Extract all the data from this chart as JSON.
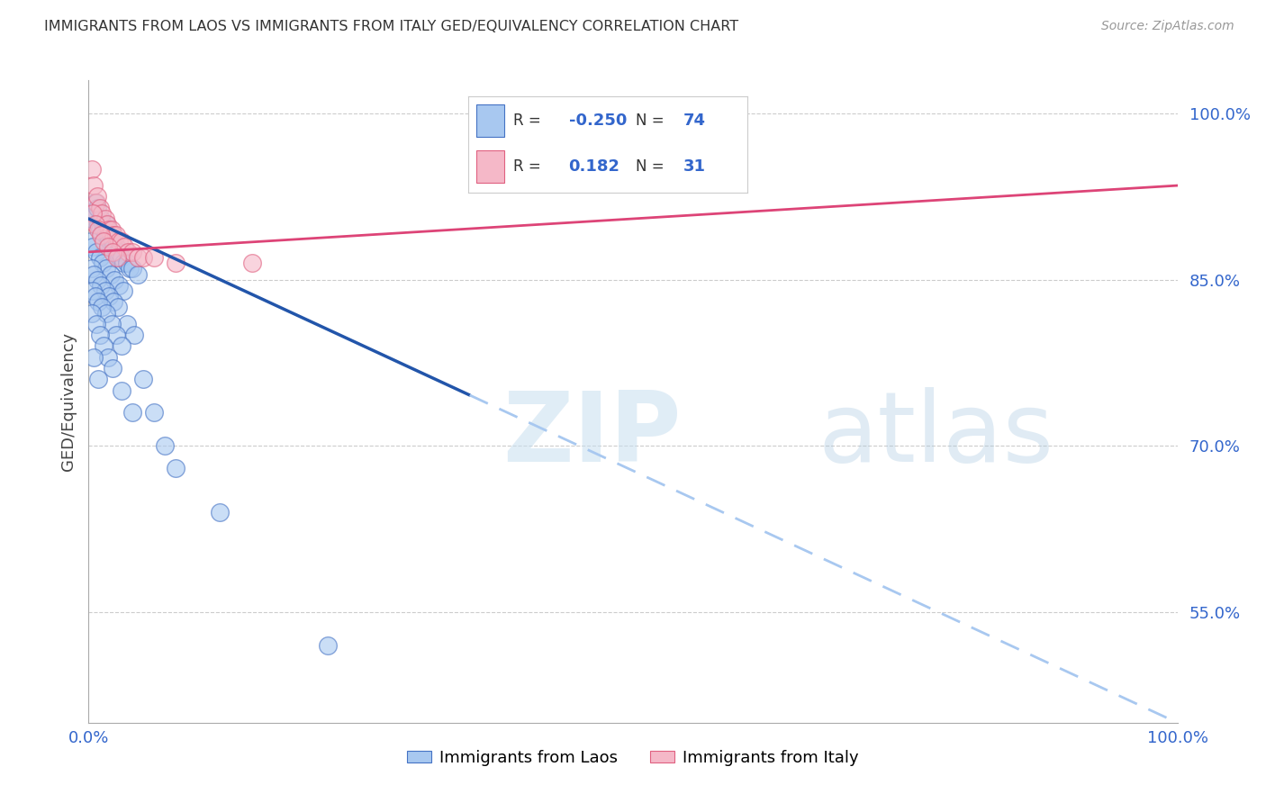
{
  "title": "IMMIGRANTS FROM LAOS VS IMMIGRANTS FROM ITALY GED/EQUIVALENCY CORRELATION CHART",
  "source": "Source: ZipAtlas.com",
  "ylabel": "GED/Equivalency",
  "right_yticks": [
    55.0,
    70.0,
    85.0,
    100.0
  ],
  "legend_blue_R": "-0.250",
  "legend_blue_N": "74",
  "legend_pink_R": "0.182",
  "legend_pink_N": "31",
  "blue_color": "#a8c8f0",
  "pink_color": "#f5b8c8",
  "blue_edge_color": "#4472c4",
  "pink_edge_color": "#e06080",
  "blue_line_color": "#2255aa",
  "pink_line_color": "#dd4477",
  "xmin": 0.0,
  "xmax": 100.0,
  "ymin": 45.0,
  "ymax": 103.0,
  "blue_line_x0": 0.0,
  "blue_line_y0": 90.5,
  "blue_line_x1": 100.0,
  "blue_line_y1": 45.0,
  "blue_solid_end_x": 35.0,
  "pink_line_x0": 0.0,
  "pink_line_y0": 87.5,
  "pink_line_x1": 100.0,
  "pink_line_y1": 93.5,
  "blue_scatter_x": [
    0.3,
    0.5,
    0.6,
    0.8,
    0.9,
    1.0,
    1.1,
    1.2,
    1.3,
    1.4,
    1.5,
    1.6,
    1.7,
    1.8,
    1.9,
    2.0,
    2.1,
    2.2,
    2.3,
    2.4,
    2.5,
    2.6,
    2.7,
    2.8,
    3.0,
    3.2,
    3.5,
    3.8,
    4.0,
    4.5,
    0.2,
    0.4,
    0.7,
    1.0,
    1.3,
    1.6,
    2.0,
    2.4,
    2.8,
    3.2,
    0.3,
    0.5,
    0.8,
    1.1,
    1.5,
    1.9,
    2.3,
    2.7,
    3.5,
    4.2,
    0.4,
    0.6,
    0.9,
    1.2,
    1.6,
    2.1,
    2.5,
    3.0,
    5.0,
    6.0,
    0.3,
    0.7,
    1.0,
    1.4,
    1.8,
    2.2,
    3.0,
    4.0,
    7.0,
    8.0,
    0.5,
    0.9,
    12.0,
    22.0
  ],
  "blue_scatter_y": [
    90.5,
    91.0,
    92.0,
    91.5,
    90.0,
    89.5,
    90.5,
    89.0,
    90.0,
    89.5,
    89.0,
    90.0,
    88.5,
    89.0,
    88.5,
    89.0,
    88.0,
    88.5,
    88.0,
    87.5,
    88.0,
    87.5,
    87.0,
    87.5,
    87.0,
    86.5,
    86.5,
    86.0,
    86.0,
    85.5,
    88.5,
    88.0,
    87.5,
    87.0,
    86.5,
    86.0,
    85.5,
    85.0,
    84.5,
    84.0,
    86.0,
    85.5,
    85.0,
    84.5,
    84.0,
    83.5,
    83.0,
    82.5,
    81.0,
    80.0,
    84.0,
    83.5,
    83.0,
    82.5,
    82.0,
    81.0,
    80.0,
    79.0,
    76.0,
    73.0,
    82.0,
    81.0,
    80.0,
    79.0,
    78.0,
    77.0,
    75.0,
    73.0,
    70.0,
    68.0,
    78.0,
    76.0,
    64.0,
    52.0
  ],
  "pink_scatter_x": [
    0.3,
    0.5,
    0.7,
    0.8,
    1.0,
    1.2,
    1.5,
    1.7,
    1.9,
    2.1,
    2.3,
    2.5,
    2.8,
    3.0,
    3.3,
    3.6,
    4.0,
    4.5,
    5.0,
    6.0,
    0.4,
    0.6,
    0.9,
    1.1,
    1.4,
    1.8,
    2.2,
    2.6,
    8.0,
    15.0,
    40.0
  ],
  "pink_scatter_y": [
    95.0,
    93.5,
    92.0,
    92.5,
    91.5,
    91.0,
    90.5,
    90.0,
    89.5,
    89.5,
    89.0,
    89.0,
    88.5,
    88.5,
    88.0,
    87.5,
    87.5,
    87.0,
    87.0,
    87.0,
    91.0,
    90.0,
    89.5,
    89.0,
    88.5,
    88.0,
    87.5,
    87.0,
    86.5,
    86.5,
    100.0
  ]
}
